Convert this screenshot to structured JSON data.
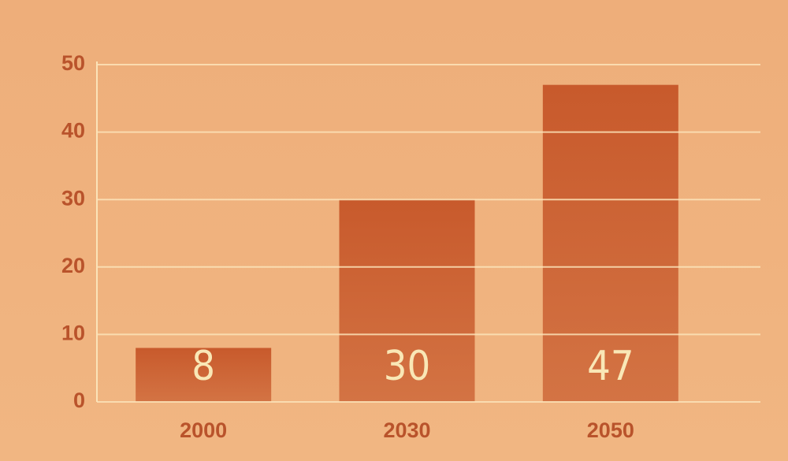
{
  "chart_data": {
    "type": "bar",
    "categories": [
      "2000",
      "2030",
      "2050"
    ],
    "values": [
      8,
      30,
      47
    ],
    "color": "#c85a2c",
    "ylim": [
      0,
      50
    ],
    "yticks": [
      0,
      10,
      20,
      30,
      40,
      50
    ],
    "grid": true
  }
}
